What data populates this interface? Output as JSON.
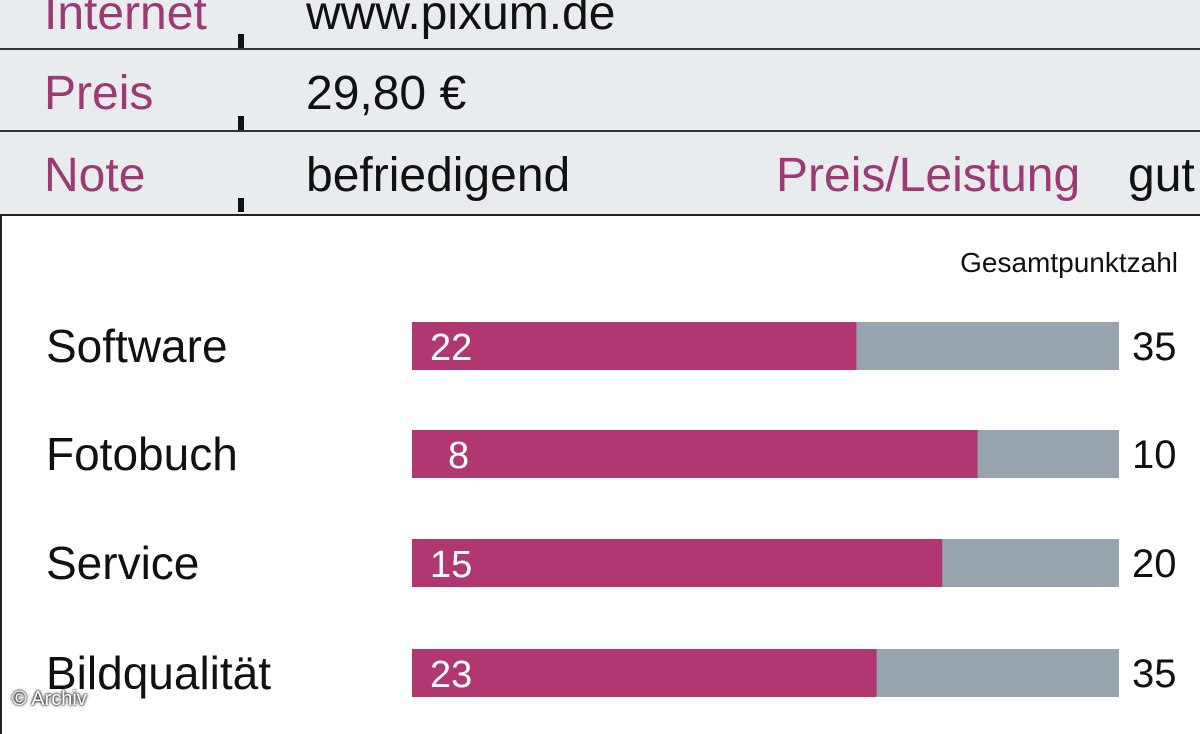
{
  "info": {
    "rows": [
      {
        "label": "Internet",
        "value": "www.pixum.de"
      },
      {
        "label": "Preis",
        "value": "29,80 €"
      },
      {
        "label": "Note",
        "value": "befriedigend",
        "label2": "Preis/Leistung",
        "value2": "gut"
      }
    ]
  },
  "chart_data": {
    "type": "bar",
    "orientation": "horizontal",
    "header": "Gesamtpunktzahl",
    "categories": [
      "Software",
      "Fotobuch",
      "Service",
      "Bildqualität"
    ],
    "values": [
      22,
      8,
      15,
      23
    ],
    "max_values": [
      35,
      10,
      20,
      35
    ],
    "colors": {
      "value": "#b0376f",
      "remainder": "#97a4ad"
    }
  },
  "credit": "© Archiv"
}
